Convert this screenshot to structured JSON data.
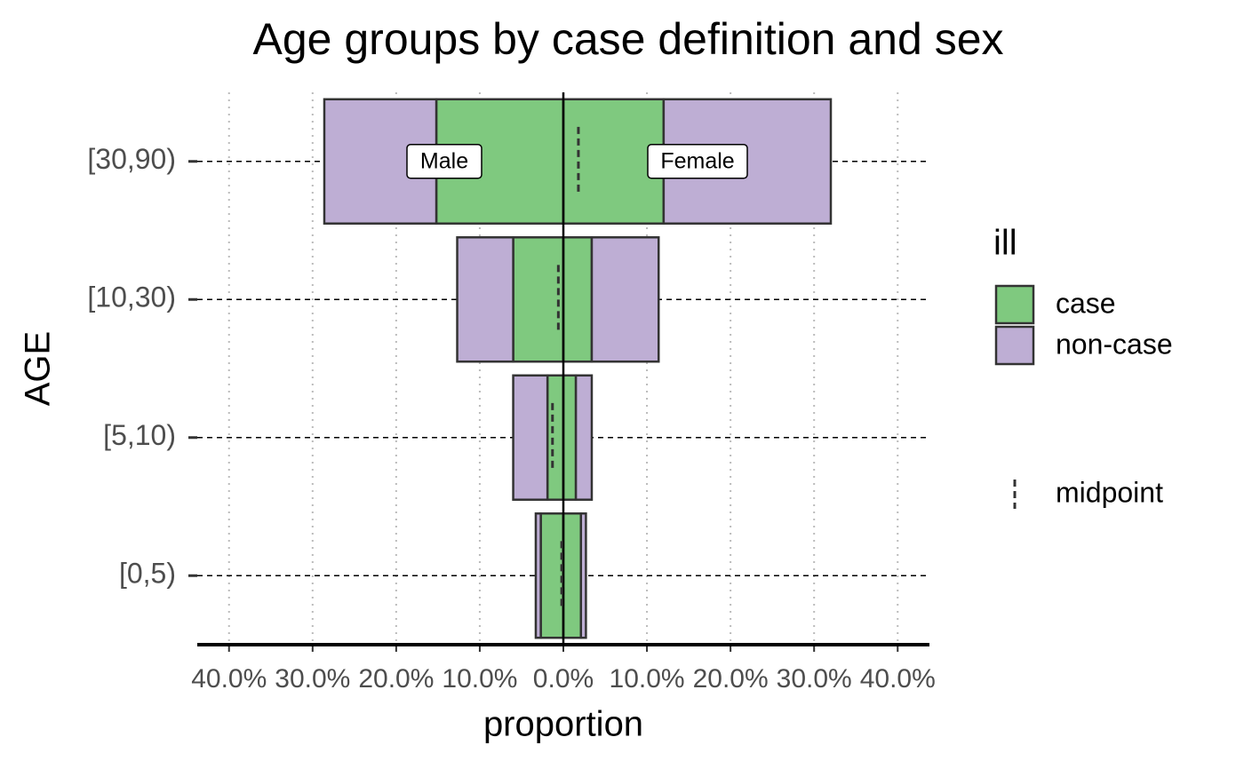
{
  "chart_data": {
    "type": "pyramid",
    "title": "Age groups by case definition and sex",
    "x_label": "proportion",
    "y_label": "AGE",
    "legend_title": "ill",
    "categories": [
      "[0,5)",
      "[5,10)",
      "[10,30)",
      "[30,90)"
    ],
    "series": [
      {
        "name": "case",
        "color": "#7fc97f"
      },
      {
        "name": "non-case",
        "color": "#beaed4"
      }
    ],
    "sides": [
      {
        "label": "Male",
        "series_values": [
          [
            -2.7,
            -1.9,
            -6.0,
            -15.2
          ],
          [
            -0.6,
            -4.1,
            -6.7,
            -13.4
          ]
        ]
      },
      {
        "label": "Female",
        "series_values": [
          [
            2.1,
            1.5,
            3.4,
            12.0
          ],
          [
            0.6,
            1.9,
            8.0,
            20.0
          ]
        ]
      }
    ],
    "midpoint": {
      "name": "midpoint",
      "values": [
        -0.2,
        -1.3,
        -0.6,
        1.8
      ]
    },
    "xlim": [
      -43.8,
      43.8
    ],
    "xticks": [
      {
        "value": -40,
        "label": "40.0%"
      },
      {
        "value": -30,
        "label": "30.0%"
      },
      {
        "value": -20,
        "label": "20.0%"
      },
      {
        "value": -10,
        "label": "10.0%"
      },
      {
        "value": 0,
        "label": "0.0%"
      },
      {
        "value": 10,
        "label": "10.0%"
      },
      {
        "value": 20,
        "label": "20.0%"
      },
      {
        "value": 30,
        "label": "30.0%"
      },
      {
        "value": 40,
        "label": "40.0%"
      }
    ],
    "grid": true
  }
}
